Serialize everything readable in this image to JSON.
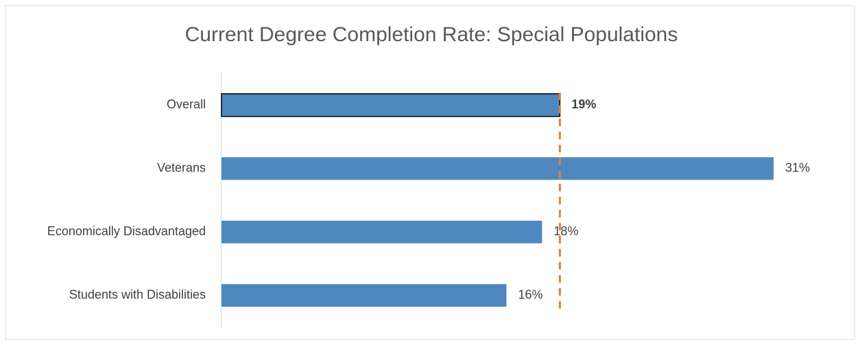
{
  "chart_data": {
    "type": "bar",
    "orientation": "horizontal",
    "title": "Current Degree Completion Rate: Special Populations",
    "categories": [
      "Overall",
      "Veterans",
      "Economically Disadvantaged",
      "Students with Disabilities"
    ],
    "values": [
      19,
      31,
      18,
      16
    ],
    "value_labels": [
      "19%",
      "31%",
      "18%",
      "16%"
    ],
    "color": "#4f88bf",
    "reference_color": "#ed7d31"
  }
}
